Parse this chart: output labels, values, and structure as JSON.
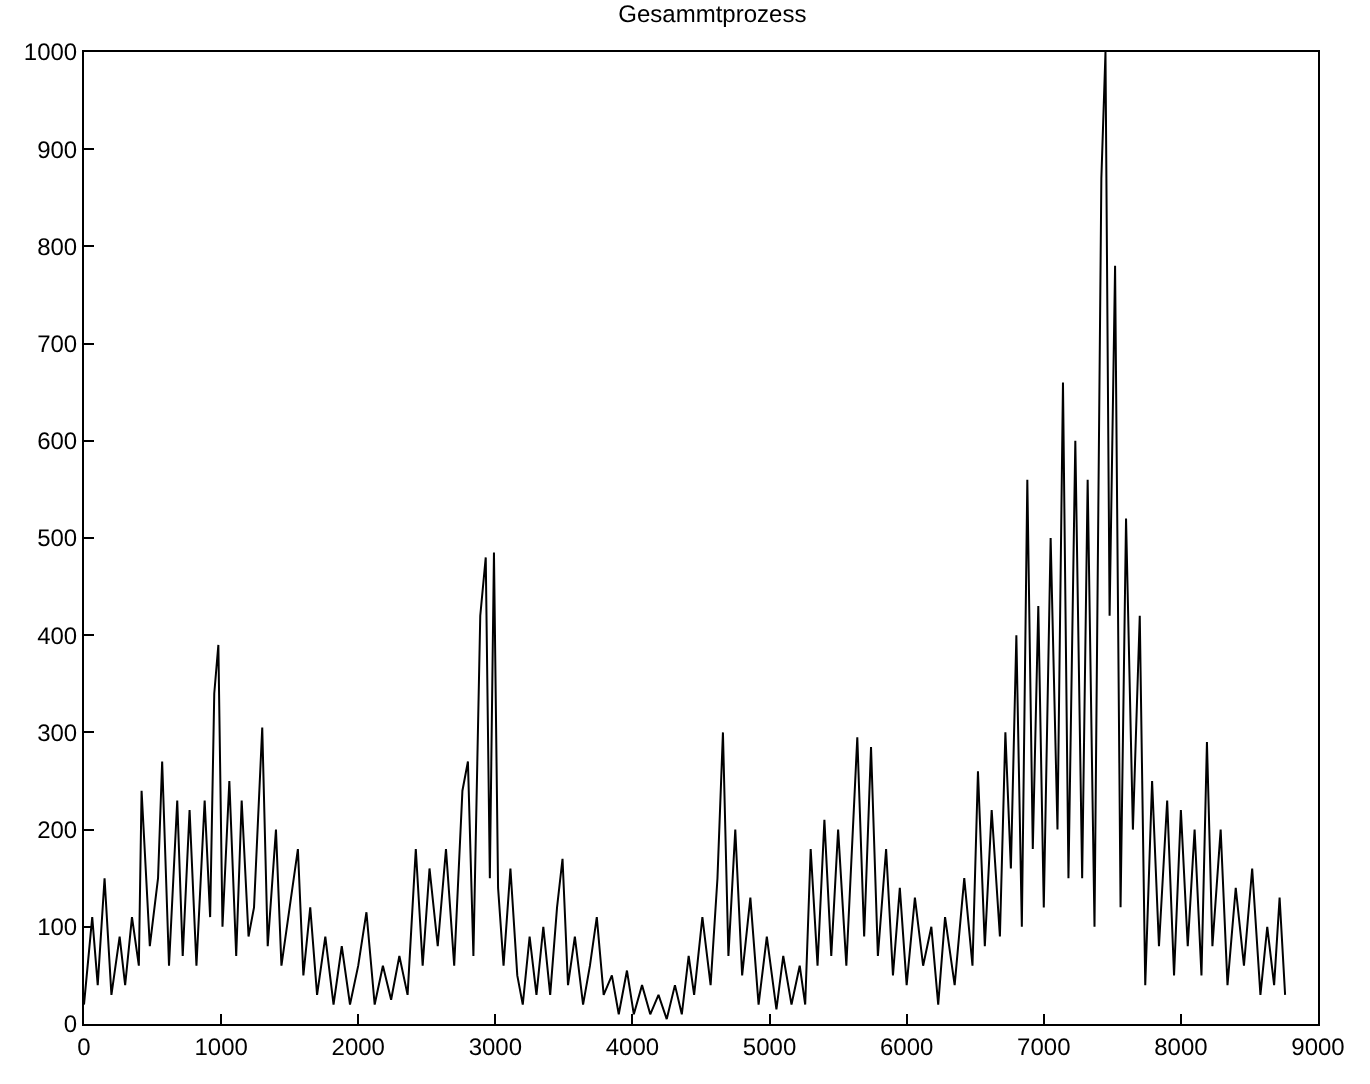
{
  "chart_data": {
    "type": "line",
    "title": "Gesammtprozess",
    "x": [
      0,
      60,
      100,
      150,
      200,
      260,
      300,
      350,
      400,
      420,
      480,
      540,
      570,
      620,
      680,
      720,
      770,
      820,
      880,
      920,
      950,
      980,
      1010,
      1060,
      1110,
      1150,
      1200,
      1240,
      1300,
      1340,
      1400,
      1440,
      1500,
      1560,
      1600,
      1650,
      1700,
      1760,
      1820,
      1880,
      1940,
      2000,
      2060,
      2120,
      2180,
      2240,
      2300,
      2360,
      2420,
      2470,
      2520,
      2580,
      2640,
      2700,
      2760,
      2800,
      2840,
      2890,
      2930,
      2960,
      2990,
      3020,
      3060,
      3110,
      3160,
      3200,
      3250,
      3300,
      3350,
      3400,
      3450,
      3490,
      3530,
      3580,
      3640,
      3690,
      3740,
      3790,
      3850,
      3900,
      3960,
      4010,
      4070,
      4130,
      4190,
      4250,
      4310,
      4360,
      4410,
      4450,
      4510,
      4570,
      4620,
      4660,
      4700,
      4750,
      4800,
      4860,
      4920,
      4980,
      5050,
      5100,
      5160,
      5220,
      5260,
      5300,
      5350,
      5400,
      5450,
      5500,
      5560,
      5640,
      5690,
      5740,
      5790,
      5850,
      5900,
      5950,
      6000,
      6060,
      6120,
      6180,
      6230,
      6280,
      6350,
      6420,
      6480,
      6520,
      6570,
      6620,
      6680,
      6720,
      6760,
      6800,
      6840,
      6880,
      6920,
      6960,
      7000,
      7050,
      7100,
      7140,
      7180,
      7230,
      7280,
      7320,
      7370,
      7420,
      7450,
      7480,
      7520,
      7560,
      7600,
      7650,
      7700,
      7740,
      7790,
      7840,
      7900,
      7950,
      8000,
      8050,
      8100,
      8150,
      8190,
      8230,
      8290,
      8340,
      8400,
      8460,
      8520,
      8580,
      8630,
      8680,
      8720,
      8760
    ],
    "series": [
      {
        "color": "#000000",
        "values": [
          20,
          110,
          40,
          150,
          30,
          90,
          40,
          110,
          60,
          240,
          80,
          150,
          270,
          60,
          230,
          70,
          220,
          60,
          230,
          110,
          340,
          390,
          100,
          250,
          70,
          230,
          90,
          120,
          305,
          80,
          200,
          60,
          120,
          180,
          50,
          120,
          30,
          90,
          20,
          80,
          20,
          60,
          115,
          20,
          60,
          25,
          70,
          30,
          180,
          60,
          160,
          80,
          180,
          60,
          240,
          270,
          70,
          420,
          480,
          150,
          485,
          140,
          60,
          160,
          50,
          20,
          90,
          30,
          100,
          30,
          120,
          170,
          40,
          90,
          20,
          60,
          110,
          30,
          50,
          10,
          55,
          10,
          40,
          10,
          30,
          5,
          40,
          10,
          70,
          30,
          110,
          40,
          150,
          300,
          70,
          200,
          50,
          130,
          20,
          90,
          15,
          70,
          20,
          60,
          20,
          180,
          60,
          210,
          70,
          200,
          60,
          295,
          90,
          285,
          70,
          180,
          50,
          140,
          40,
          130,
          60,
          100,
          20,
          110,
          40,
          150,
          60,
          260,
          80,
          220,
          90,
          300,
          160,
          400,
          100,
          560,
          180,
          430,
          120,
          500,
          200,
          660,
          150,
          600,
          150,
          560,
          100,
          870,
          1000,
          420,
          780,
          120,
          520,
          200,
          420,
          40,
          250,
          80,
          230,
          50,
          220,
          80,
          200,
          50,
          290,
          80,
          200,
          40,
          140,
          60,
          160,
          30,
          100,
          40,
          130,
          30
        ]
      }
    ],
    "xlim": [
      0,
      9000
    ],
    "xticks": [
      0,
      1000,
      2000,
      3000,
      4000,
      5000,
      6000,
      7000,
      8000,
      9000
    ],
    "ylim": [
      0,
      1000
    ],
    "yticks": [
      0,
      100,
      200,
      300,
      400,
      500,
      600,
      700,
      800,
      900,
      1000
    ],
    "legend": false,
    "marker": "none",
    "line_style": "solid"
  }
}
